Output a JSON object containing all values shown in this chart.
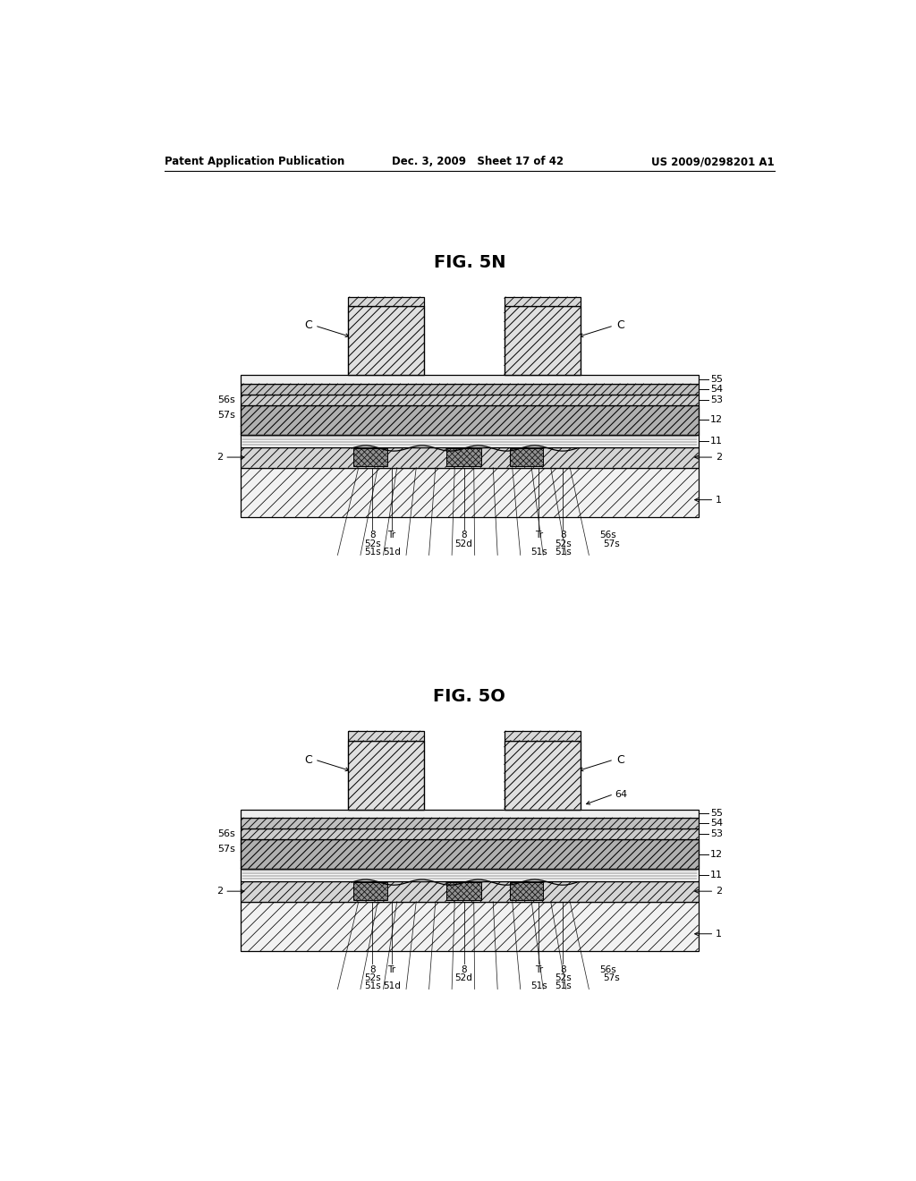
{
  "background_color": "#ffffff",
  "header_left": "Patent Application Publication",
  "header_mid": "Dec. 3, 2009   Sheet 17 of 42",
  "header_right": "US 2009/0298201 A1",
  "fig1_title": "FIG. 5N",
  "fig2_title": "FIG. 5O"
}
